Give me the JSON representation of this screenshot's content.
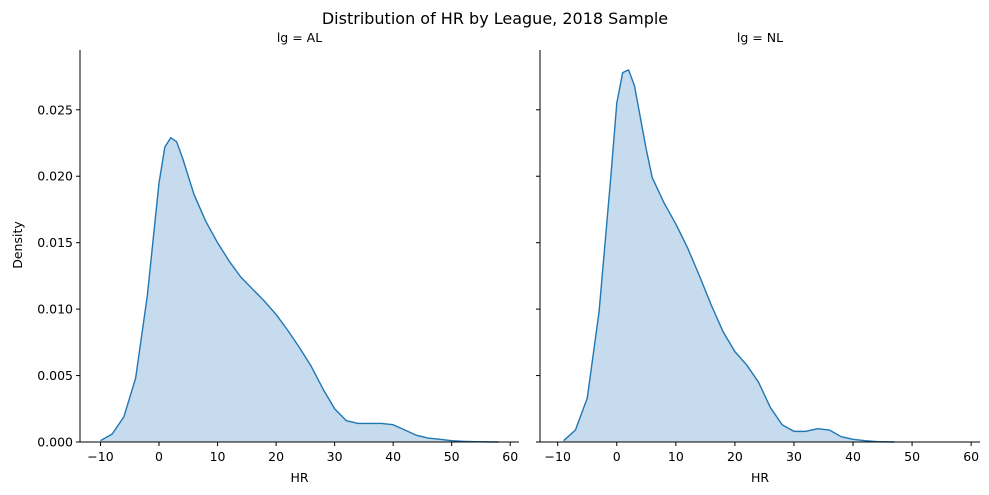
{
  "title": "Distribution of HR by League, 2018 Sample",
  "chart_data": {
    "type": "area",
    "title": "Distribution of HR by League, 2018 Sample",
    "ylabel": "Density",
    "xlabel": "HR",
    "shared_y": true,
    "ylim": [
      0,
      0.0295
    ],
    "y_ticks": [
      0,
      0.005,
      0.01,
      0.015,
      0.02,
      0.025
    ],
    "y_tick_labels": [
      "0.000",
      "0.005",
      "0.010",
      "0.015",
      "0.020",
      "0.025"
    ],
    "x_ticks": [
      -10,
      0,
      10,
      20,
      30,
      40,
      50,
      60
    ],
    "x_tick_labels": [
      "−10",
      "0",
      "10",
      "20",
      "30",
      "40",
      "50",
      "60"
    ],
    "fill_color": "#c6dbed",
    "line_color": "#1f77b4",
    "grid": false,
    "panels": [
      {
        "title": "lg = AL",
        "xlabel": "HR",
        "xlim": [
          -13.5,
          61.5
        ],
        "series": [
          {
            "x": [
              -10,
              -8,
              -6,
              -4,
              -2,
              0,
              1,
              2,
              3,
              4,
              6,
              8,
              10,
              12,
              14,
              16,
              18,
              20,
              22,
              24,
              26,
              28,
              30,
              32,
              34,
              36,
              38,
              40,
              42,
              44,
              46,
              48,
              50,
              52,
              54,
              56,
              58
            ],
            "y": [
              0.0001,
              0.0006,
              0.0019,
              0.0048,
              0.011,
              0.0195,
              0.0222,
              0.0229,
              0.0226,
              0.0214,
              0.0186,
              0.0166,
              0.015,
              0.0136,
              0.0124,
              0.0115,
              0.0106,
              0.0096,
              0.0084,
              0.0071,
              0.0057,
              0.004,
              0.0025,
              0.0016,
              0.0014,
              0.0014,
              0.0014,
              0.0013,
              0.0009,
              0.0005,
              0.0003,
              0.0002,
              0.0001,
              5e-05,
              2e-05,
              1e-05,
              0.0
            ]
          }
        ]
      },
      {
        "title": "lg = NL",
        "xlabel": "HR",
        "xlim": [
          -13,
          61.5
        ],
        "series": [
          {
            "x": [
              -9,
              -7,
              -5,
              -3,
              -1,
              0,
              1,
              2,
              3,
              4,
              5,
              6,
              8,
              10,
              12,
              14,
              16,
              18,
              20,
              22,
              24,
              26,
              28,
              30,
              32,
              34,
              36,
              38,
              40,
              42,
              44,
              46,
              47
            ],
            "y": [
              0.0001,
              0.0009,
              0.0033,
              0.0098,
              0.02,
              0.0255,
              0.0278,
              0.028,
              0.0268,
              0.0244,
              0.022,
              0.0199,
              0.018,
              0.0164,
              0.0146,
              0.0125,
              0.0103,
              0.0083,
              0.0068,
              0.0058,
              0.0045,
              0.0026,
              0.0013,
              0.0008,
              0.0008,
              0.001,
              0.0009,
              0.0004,
              0.0002,
              0.0001,
              3e-05,
              1e-05,
              0.0
            ]
          }
        ]
      }
    ]
  }
}
